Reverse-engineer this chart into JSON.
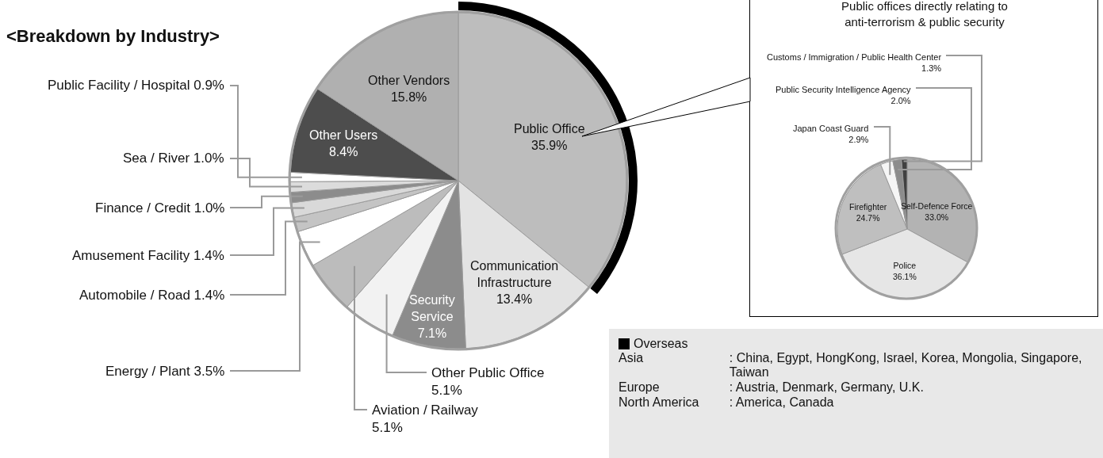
{
  "chart_data": [
    {
      "type": "pie",
      "title": "<Breakdown by Industry>",
      "categories": [
        "Public Office",
        "Communication Infrastructure",
        "Security Service",
        "Other Public Office",
        "Aviation / Railway",
        "Energy / Plant",
        "Automobile / Road",
        "Amusement Facility",
        "Finance / Credit",
        "Sea / River",
        "Public Facility / Hospital",
        "Other Users",
        "Other Vendors"
      ],
      "values": [
        35.9,
        13.4,
        7.1,
        5.1,
        5.1,
        3.5,
        1.4,
        1.4,
        1.0,
        1.0,
        0.9,
        8.4,
        15.8
      ],
      "value_labels": [
        "35.9%",
        "13.4%",
        "7.1%",
        "5.1%",
        "5.1%",
        "3.5%",
        "1.4%",
        "1.4%",
        "1.0%",
        "1.0%",
        "0.9%",
        "8.4%",
        "15.8%"
      ],
      "colors": [
        "#bdbdbd",
        "#e3e3e3",
        "#8c8c8c",
        "#f2f2f2",
        "#bcbcbc",
        "#ffffff",
        "#c4c4c4",
        "#d9d9d9",
        "#8c8c8c",
        "#dcdcdc",
        "#ffffff",
        "#4d4d4d",
        "#b0b0b0"
      ]
    },
    {
      "type": "pie",
      "title": "Public offices directly relating to\nanti-terrorism & public security",
      "categories": [
        "Self-Defence Force",
        "Police",
        "Firefighter",
        "Japan Coast Guard",
        "Public Security Intelligence Agency",
        "Customs / Immigration / Public Health Center"
      ],
      "values": [
        33.0,
        36.1,
        24.7,
        2.9,
        2.0,
        1.3
      ],
      "value_labels": [
        "33.0%",
        "36.1%",
        "24.7%",
        "2.9%",
        "2.0%",
        "1.3%"
      ],
      "colors": [
        "#b3b3b3",
        "#e6e6e6",
        "#bfbfbf",
        "#f5f5f5",
        "#8c8c8c",
        "#404040"
      ]
    },
    {
      "type": "other",
      "title": "Overseas",
      "categories": [
        "Asia",
        "Europe",
        "North America"
      ],
      "annotations": [
        ": China, Egypt, HongKong, Israel, Korea, Mongolia, Singapore, Taiwan",
        ": Austria, Denmark, Germany, U.K.",
        ": America, Canada"
      ]
    }
  ]
}
